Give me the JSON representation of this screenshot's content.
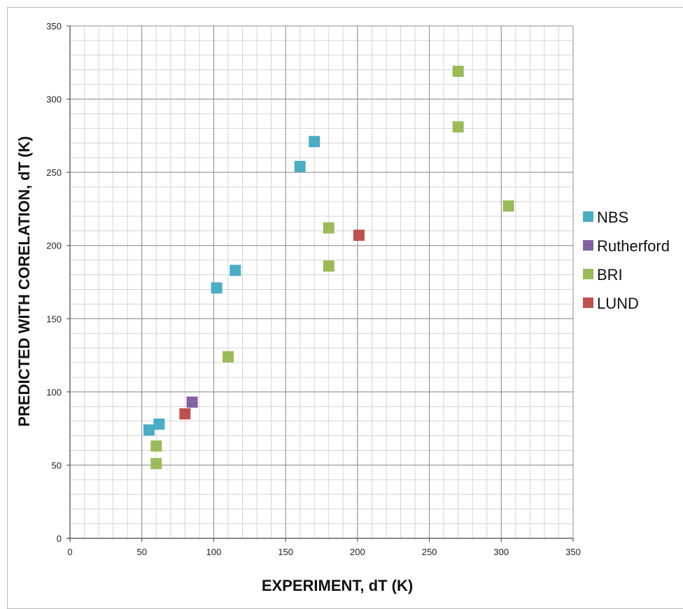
{
  "chart_data": {
    "type": "scatter",
    "title": "",
    "xlabel": "EXPERIMENT, dT (K)",
    "ylabel": "PREDICTED WITH CORELATION, dT (K)",
    "xlim": [
      0,
      350
    ],
    "ylim": [
      0,
      350
    ],
    "xticks": [
      0,
      50,
      100,
      150,
      200,
      250,
      300,
      350
    ],
    "yticks": [
      0,
      50,
      100,
      150,
      200,
      250,
      300,
      350
    ],
    "minor_step": 10,
    "grid": true,
    "legend_position": "right",
    "series": [
      {
        "name": "NBS",
        "color": "#4bacc6",
        "points": [
          [
            55,
            74
          ],
          [
            62,
            78
          ],
          [
            102,
            171
          ],
          [
            115,
            183
          ],
          [
            160,
            254
          ],
          [
            170,
            271
          ]
        ]
      },
      {
        "name": "Rutherford",
        "color": "#8064a2",
        "points": [
          [
            85,
            93
          ]
        ]
      },
      {
        "name": "BRI",
        "color": "#9bbb59",
        "points": [
          [
            60,
            51
          ],
          [
            60,
            63
          ],
          [
            110,
            124
          ],
          [
            180,
            186
          ],
          [
            180,
            212
          ],
          [
            270,
            281
          ],
          [
            270,
            319
          ],
          [
            305,
            227
          ]
        ]
      },
      {
        "name": "LUND",
        "color": "#c0504d",
        "points": [
          [
            80,
            85
          ],
          [
            201,
            207
          ]
        ]
      }
    ]
  }
}
